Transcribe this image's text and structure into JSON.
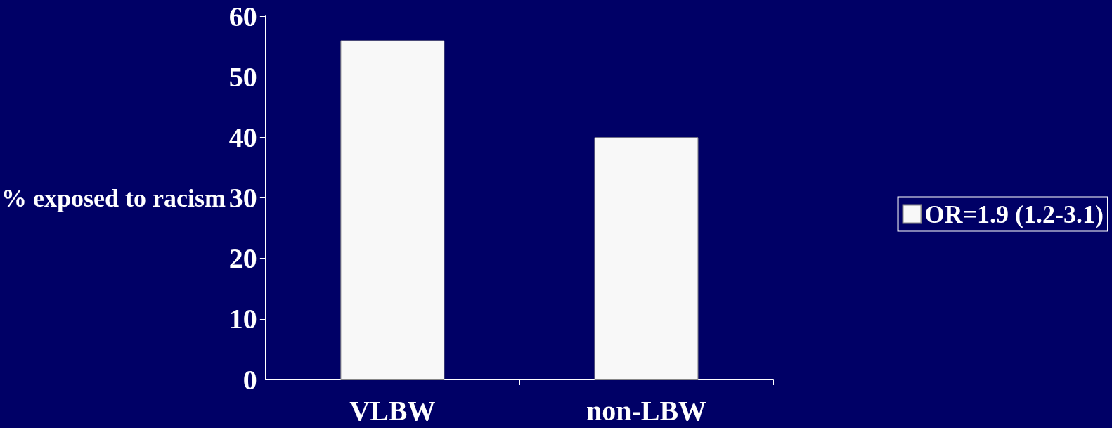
{
  "chart_data": {
    "type": "bar",
    "ylabel": "% exposed to racism",
    "categories": [
      "VLBW",
      "non-LBW"
    ],
    "series": [
      {
        "name": "OR=1.9 (1.2-3.1)",
        "color": "#f8f8f8",
        "values": [
          56,
          40
        ]
      }
    ],
    "ylim": [
      0,
      60
    ],
    "yticks": [
      0,
      10,
      20,
      30,
      40,
      50,
      60
    ],
    "grid": false,
    "legend": "right"
  }
}
